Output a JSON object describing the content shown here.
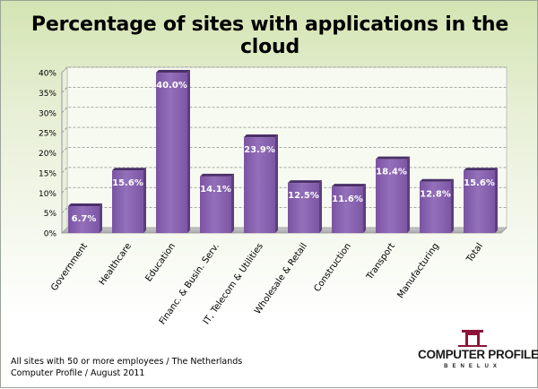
{
  "chart_data": {
    "type": "bar",
    "title": "Percentage of sites with applications in the cloud",
    "categories": [
      "Government",
      "Healthcare",
      "Education",
      "Financ. & Busin. Serv.",
      "IT, Telecom & Utilities",
      "Wholesale & Retail",
      "Construction",
      "Transport",
      "Manufacturing",
      "Total"
    ],
    "values": [
      6.7,
      15.6,
      40.0,
      14.1,
      23.9,
      12.5,
      11.6,
      18.4,
      12.8,
      15.6
    ],
    "value_labels": [
      "6.7%",
      "15.6%",
      "40.0%",
      "14.1%",
      "23.9%",
      "12.5%",
      "11.6%",
      "18.4%",
      "12.8%",
      "15.6%"
    ],
    "ylim": [
      0,
      40
    ],
    "yticks": [
      "0%",
      "5%",
      "10%",
      "15%",
      "20%",
      "25%",
      "30%",
      "35%",
      "40%"
    ],
    "xlabel": "",
    "ylabel": "",
    "grid": true,
    "legend": "none",
    "bar_color": "#8a62b0"
  },
  "footnote": {
    "line1": "All sites with 50 or more employees / The Netherlands",
    "line2": "Computer Profile / August 2011"
  },
  "logo": {
    "name": "COMPUTER PROFILE",
    "sub": "BENELUX",
    "icon": "computer-profile-logo-icon",
    "color": "#8b1538"
  }
}
